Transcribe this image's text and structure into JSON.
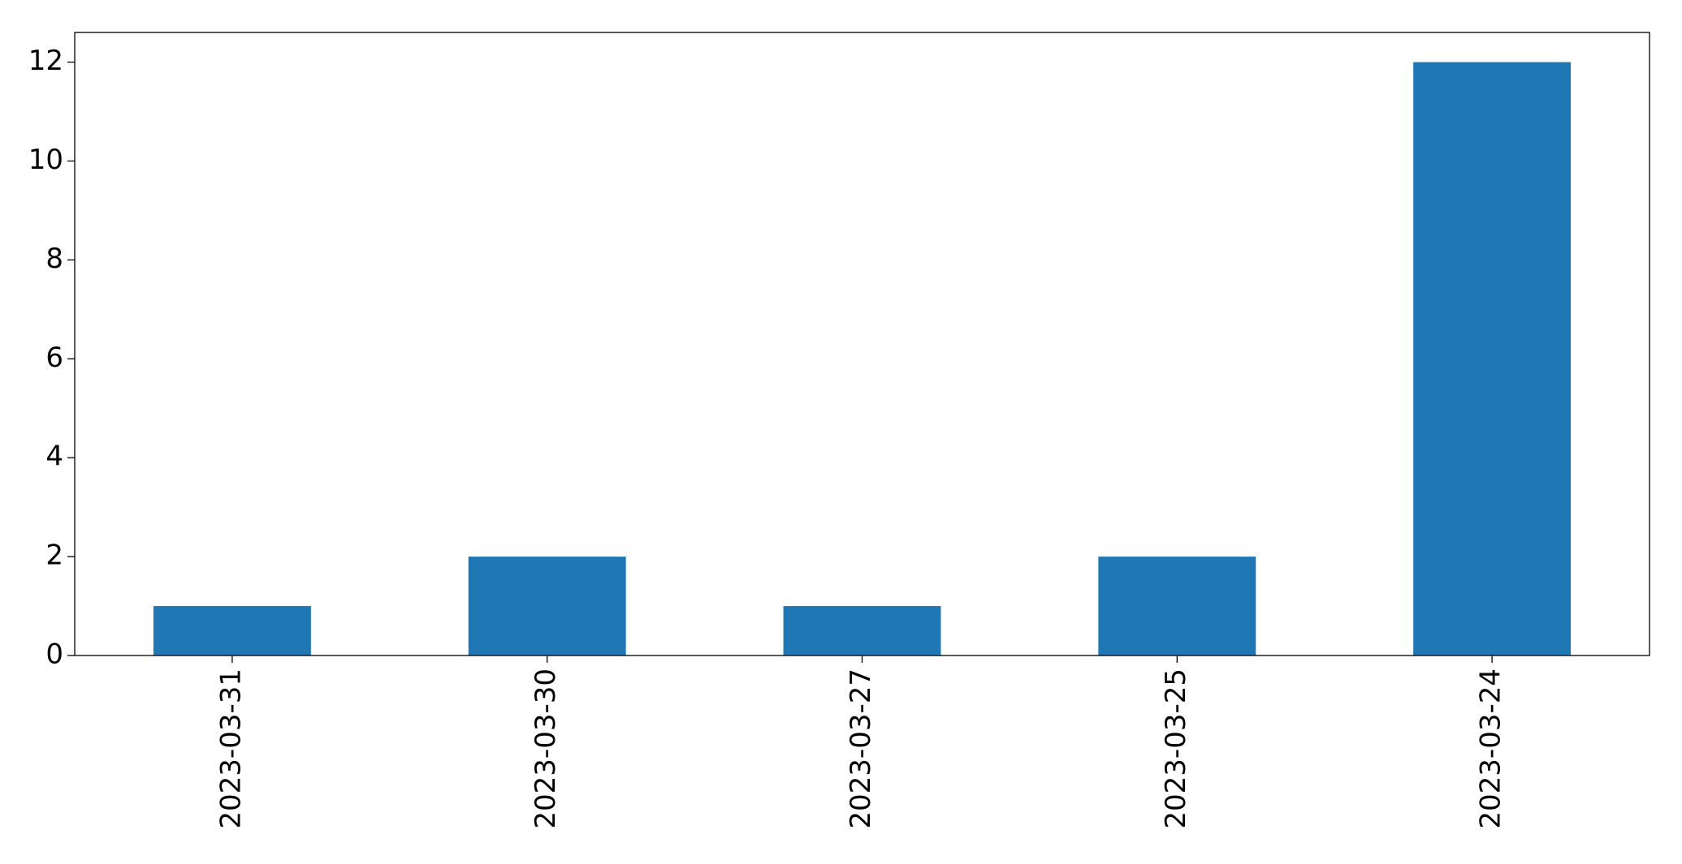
{
  "chart_data": {
    "type": "bar",
    "categories": [
      "2023-03-31",
      "2023-03-30",
      "2023-03-27",
      "2023-03-25",
      "2023-03-24"
    ],
    "values": [
      1,
      2,
      1,
      2,
      12
    ],
    "color": "#1f77b4",
    "ylim": [
      0,
      12.6
    ],
    "yticks": [
      0,
      2,
      4,
      6,
      8,
      10,
      12
    ],
    "grid": false
  }
}
